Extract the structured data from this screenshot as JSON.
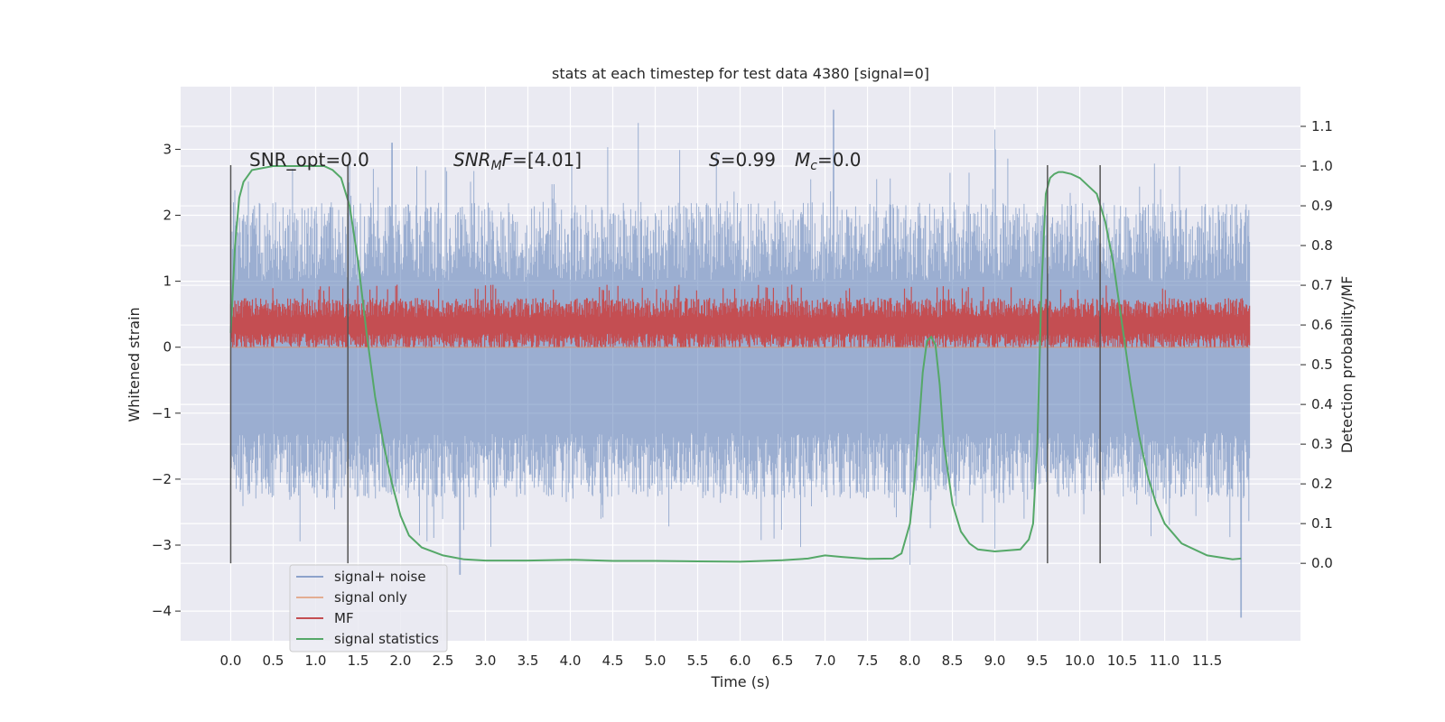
{
  "chart_data": {
    "type": "line",
    "title": "stats at each timestep for test data 4380 [signal=0]",
    "xlabel": "Time (s)",
    "ylabel": "Whitened strain",
    "y2label": "Detection probability/MF",
    "xlim": [
      -0.59,
      12.6
    ],
    "ylim": [
      -4.45,
      3.95
    ],
    "y2lim": [
      -0.195,
      1.2
    ],
    "x_ticks": [
      "0.0",
      "0.5",
      "1.0",
      "1.5",
      "2.0",
      "2.5",
      "3.0",
      "3.5",
      "4.0",
      "4.5",
      "5.0",
      "5.5",
      "6.0",
      "6.5",
      "7.0",
      "7.5",
      "8.0",
      "8.5",
      "9.0",
      "9.5",
      "10.0",
      "10.5",
      "11.0",
      "11.5"
    ],
    "y_ticks": [
      "−4",
      "−3",
      "−2",
      "−1",
      "0",
      "1",
      "2",
      "3"
    ],
    "y2_ticks": [
      "0.0",
      "0.1",
      "0.2",
      "0.3",
      "0.4",
      "0.5",
      "0.6",
      "0.7",
      "0.8",
      "0.9",
      "1.0",
      "1.1"
    ],
    "grid": true,
    "legend_position": "lower-left",
    "annotations": {
      "snr_opt": "SNR_opt=0.0",
      "snr_mf_sym": "SNR",
      "snr_mf_sub": "M",
      "snr_mf_f": "F",
      "snr_mf_val": "=[4.01]",
      "s_sym": "S",
      "s_val": "=0.99",
      "mc_sym": "M",
      "mc_sub": "c",
      "mc_val": "=0.0"
    },
    "vertical_lines": [
      0.0,
      1.38,
      9.62,
      10.24
    ],
    "series": [
      {
        "name": "signal+ noise",
        "axis": "left",
        "color": "#4c72b0",
        "x_range": [
          0.0,
          12.0
        ],
        "baseline_band": [
          -1.3,
          1.0
        ],
        "peak_min": -4.1,
        "peak_max": 3.6,
        "sample_points": [
          [
            0.0,
            1.9
          ],
          [
            1.4,
            2.9
          ],
          [
            1.9,
            3.1
          ],
          [
            2.7,
            -3.45
          ],
          [
            4.8,
            3.4
          ],
          [
            6.4,
            -2.9
          ],
          [
            7.1,
            3.6
          ],
          [
            8.0,
            -3.3
          ],
          [
            9.0,
            3.3
          ],
          [
            11.9,
            -4.1
          ]
        ]
      },
      {
        "name": "signal only",
        "axis": "left",
        "color": "#dd8452",
        "values_constant": 0.0
      },
      {
        "name": "MF",
        "axis": "left",
        "color": "#c44e52",
        "x_range": [
          0.0,
          12.0
        ],
        "band": [
          0.0,
          0.95
        ],
        "mean": 0.33
      },
      {
        "name": "signal statistics",
        "axis": "right",
        "color": "#55a868",
        "x": [
          0.0,
          0.05,
          0.1,
          0.15,
          0.25,
          0.5,
          1.0,
          1.1,
          1.2,
          1.3,
          1.4,
          1.5,
          1.6,
          1.7,
          1.8,
          1.9,
          2.0,
          2.1,
          2.25,
          2.5,
          2.75,
          3.0,
          3.5,
          4.0,
          4.5,
          5.0,
          5.5,
          6.0,
          6.5,
          6.8,
          7.0,
          7.2,
          7.5,
          7.8,
          7.9,
          8.0,
          8.05,
          8.1,
          8.15,
          8.2,
          8.25,
          8.3,
          8.35,
          8.4,
          8.5,
          8.6,
          8.7,
          8.8,
          9.0,
          9.3,
          9.4,
          9.45,
          9.5,
          9.55,
          9.6,
          9.65,
          9.7,
          9.75,
          9.8,
          9.9,
          10.0,
          10.2,
          10.3,
          10.4,
          10.5,
          10.6,
          10.7,
          10.8,
          10.9,
          11.0,
          11.2,
          11.5,
          11.8,
          11.9
        ],
        "values": [
          0.58,
          0.8,
          0.92,
          0.96,
          0.99,
          1.0,
          1.0,
          1.0,
          0.99,
          0.97,
          0.9,
          0.76,
          0.58,
          0.42,
          0.3,
          0.2,
          0.12,
          0.07,
          0.04,
          0.02,
          0.01,
          0.007,
          0.007,
          0.009,
          0.006,
          0.006,
          0.005,
          0.004,
          0.008,
          0.012,
          0.02,
          0.016,
          0.011,
          0.012,
          0.025,
          0.1,
          0.2,
          0.33,
          0.48,
          0.56,
          0.57,
          0.55,
          0.45,
          0.3,
          0.15,
          0.08,
          0.05,
          0.035,
          0.03,
          0.035,
          0.06,
          0.1,
          0.3,
          0.7,
          0.93,
          0.97,
          0.98,
          0.985,
          0.985,
          0.98,
          0.97,
          0.93,
          0.86,
          0.75,
          0.6,
          0.45,
          0.32,
          0.22,
          0.15,
          0.1,
          0.05,
          0.02,
          0.01,
          0.012
        ]
      }
    ]
  }
}
